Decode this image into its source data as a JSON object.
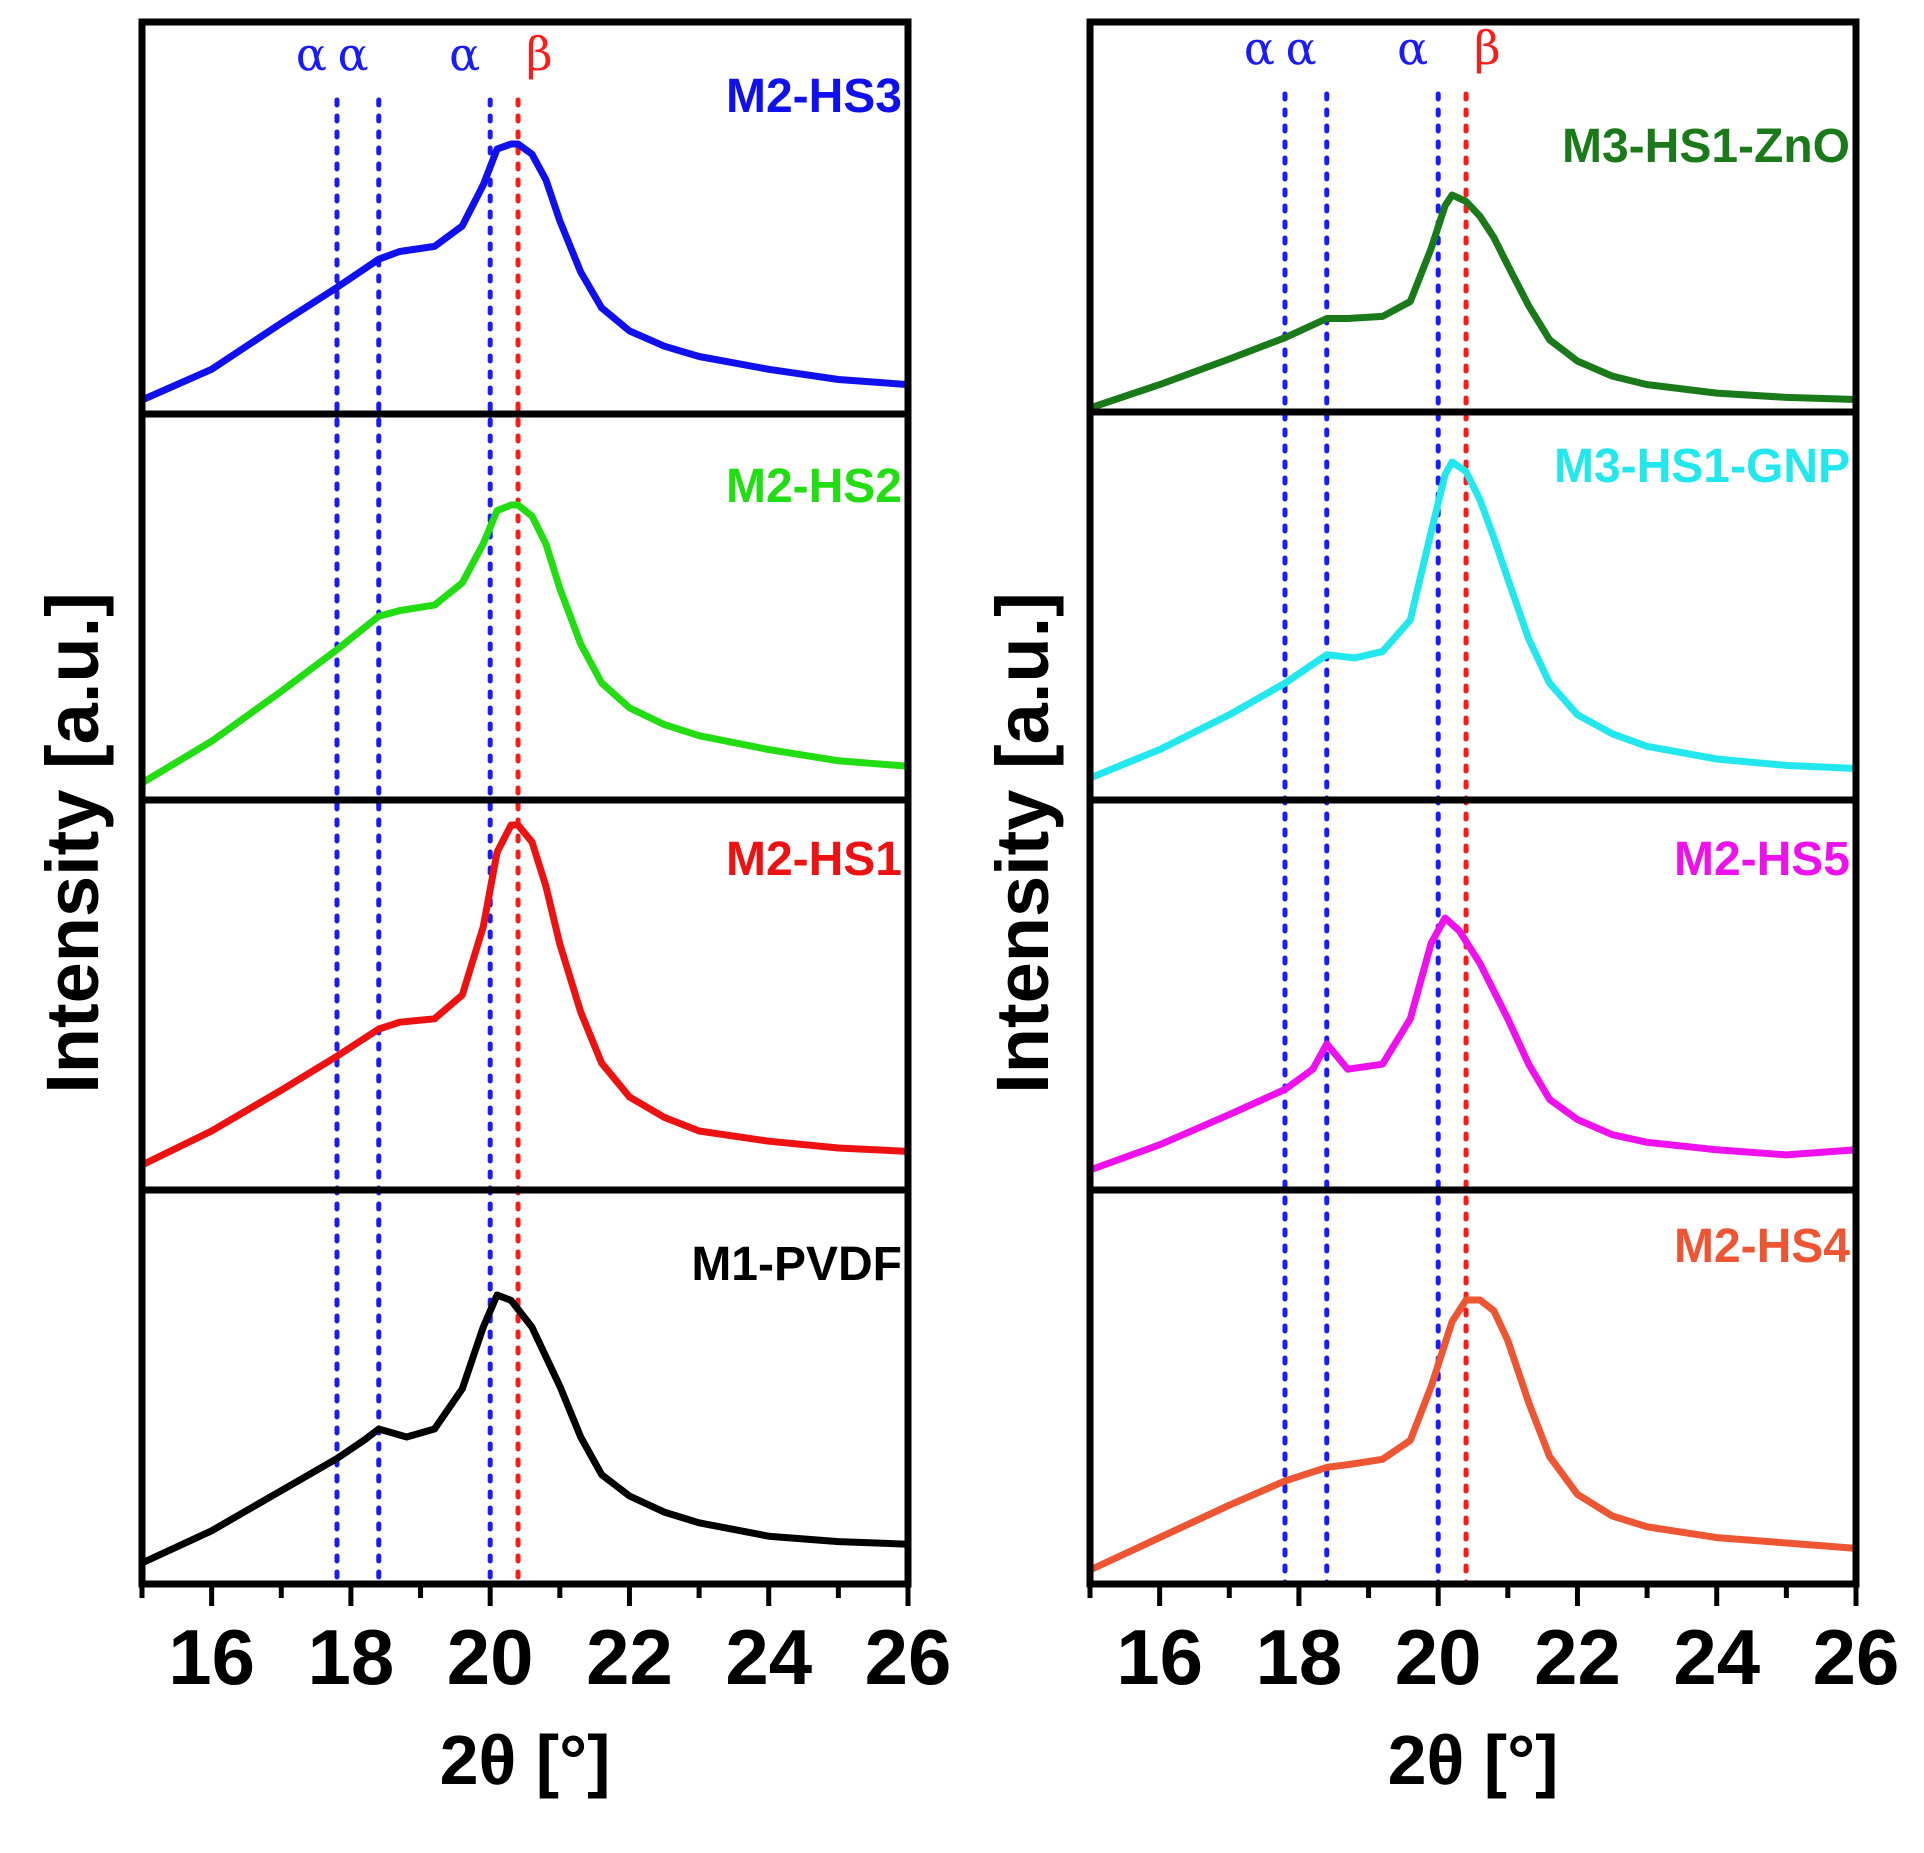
{
  "chart_data": [
    {
      "type": "line",
      "panel": "left",
      "xlabel": "2θ [°]",
      "ylabel": "Intensity [a.u.]",
      "xlim": [
        15,
        26
      ],
      "xticks": [
        "16",
        "18",
        "20",
        "22",
        "24",
        "26"
      ],
      "reference_lines": [
        {
          "label": "α",
          "x": 17.8,
          "color": "#1a1aff"
        },
        {
          "label": "α",
          "x": 18.4,
          "color": "#1a1aff"
        },
        {
          "label": "α",
          "x": 20.0,
          "color": "#1a1aff"
        },
        {
          "label": "β",
          "x": 20.4,
          "color": "#ff1a1a"
        }
      ],
      "series": [
        {
          "name": "M2-HS3",
          "color": "#1010ee",
          "x": [
            15.0,
            16.0,
            17.0,
            17.8,
            18.4,
            18.7,
            19.2,
            19.6,
            19.9,
            20.1,
            20.3,
            20.4,
            20.6,
            20.8,
            21.0,
            21.3,
            21.6,
            22.0,
            22.5,
            23.0,
            24.0,
            25.0,
            26.0
          ],
          "y": [
            0.0,
            0.12,
            0.3,
            0.44,
            0.55,
            0.58,
            0.6,
            0.68,
            0.84,
            0.98,
            1.0,
            1.0,
            0.96,
            0.86,
            0.7,
            0.5,
            0.36,
            0.27,
            0.21,
            0.17,
            0.12,
            0.08,
            0.06
          ]
        },
        {
          "name": "M2-HS2",
          "color": "#22dd11",
          "x": [
            15.0,
            16.0,
            17.0,
            17.8,
            18.4,
            18.7,
            19.2,
            19.6,
            19.9,
            20.1,
            20.3,
            20.4,
            20.6,
            20.8,
            21.0,
            21.3,
            21.6,
            22.0,
            22.5,
            23.0,
            24.0,
            25.0,
            26.0
          ],
          "y": [
            0.0,
            0.15,
            0.33,
            0.48,
            0.6,
            0.62,
            0.64,
            0.72,
            0.86,
            0.98,
            1.0,
            1.0,
            0.96,
            0.86,
            0.7,
            0.5,
            0.36,
            0.27,
            0.21,
            0.17,
            0.12,
            0.08,
            0.06
          ]
        },
        {
          "name": "M2-HS1",
          "color": "#ee1111",
          "x": [
            15.0,
            16.0,
            17.0,
            17.8,
            18.4,
            18.7,
            19.2,
            19.6,
            19.9,
            20.1,
            20.3,
            20.4,
            20.6,
            20.8,
            21.0,
            21.3,
            21.6,
            22.0,
            22.5,
            23.0,
            24.0,
            25.0,
            26.0
          ],
          "y": [
            0.0,
            0.1,
            0.22,
            0.32,
            0.4,
            0.42,
            0.43,
            0.5,
            0.7,
            0.92,
            1.0,
            1.0,
            0.95,
            0.82,
            0.65,
            0.45,
            0.3,
            0.2,
            0.14,
            0.1,
            0.07,
            0.05,
            0.04
          ]
        },
        {
          "name": "M1-PVDF",
          "color": "#000000",
          "x": [
            15.0,
            16.0,
            17.0,
            17.8,
            18.2,
            18.4,
            18.8,
            19.2,
            19.6,
            19.9,
            20.1,
            20.3,
            20.6,
            21.0,
            21.3,
            21.6,
            22.0,
            22.5,
            23.0,
            24.0,
            25.0,
            26.0
          ],
          "y": [
            0.0,
            0.12,
            0.27,
            0.39,
            0.46,
            0.5,
            0.47,
            0.5,
            0.65,
            0.88,
            1.0,
            0.98,
            0.88,
            0.66,
            0.47,
            0.33,
            0.25,
            0.19,
            0.15,
            0.1,
            0.08,
            0.07
          ]
        }
      ],
      "panel_order_top_to_bottom": [
        "M2-HS3",
        "M2-HS2",
        "M2-HS1",
        "M1-PVDF"
      ]
    },
    {
      "type": "line",
      "panel": "right",
      "xlabel": "2θ [°]",
      "ylabel": "Intensity [a.u.]",
      "xlim": [
        15,
        26
      ],
      "xticks": [
        "16",
        "18",
        "20",
        "22",
        "24",
        "26"
      ],
      "reference_lines": [
        {
          "label": "α",
          "x": 17.8,
          "color": "#1a1aff"
        },
        {
          "label": "α",
          "x": 18.4,
          "color": "#1a1aff"
        },
        {
          "label": "α",
          "x": 20.0,
          "color": "#1a1aff"
        },
        {
          "label": "β",
          "x": 20.4,
          "color": "#ff1a1a"
        }
      ],
      "series": [
        {
          "name": "M3-HS1-ZnO",
          "color": "#1a7a1a",
          "x": [
            15.0,
            16.0,
            17.0,
            17.8,
            18.4,
            18.7,
            19.2,
            19.6,
            19.9,
            20.1,
            20.2,
            20.4,
            20.6,
            20.8,
            21.0,
            21.3,
            21.6,
            22.0,
            22.5,
            23.0,
            24.0,
            25.0,
            26.0
          ],
          "y": [
            0.0,
            0.11,
            0.23,
            0.33,
            0.42,
            0.42,
            0.43,
            0.5,
            0.75,
            0.95,
            1.0,
            0.97,
            0.9,
            0.8,
            0.67,
            0.48,
            0.32,
            0.22,
            0.15,
            0.11,
            0.07,
            0.05,
            0.04
          ]
        },
        {
          "name": "M3-HS1-GNP",
          "color": "#22e8ee",
          "x": [
            15.0,
            16.0,
            17.0,
            17.8,
            18.2,
            18.4,
            18.8,
            19.2,
            19.6,
            19.9,
            20.1,
            20.2,
            20.4,
            20.6,
            20.8,
            21.0,
            21.3,
            21.6,
            22.0,
            22.5,
            23.0,
            24.0,
            25.0,
            26.0
          ],
          "y": [
            0.0,
            0.09,
            0.2,
            0.3,
            0.36,
            0.39,
            0.38,
            0.4,
            0.5,
            0.78,
            0.96,
            1.0,
            0.97,
            0.88,
            0.76,
            0.63,
            0.44,
            0.3,
            0.2,
            0.14,
            0.1,
            0.06,
            0.04,
            0.03
          ]
        },
        {
          "name": "M2-HS5",
          "color": "#ee11ee",
          "x": [
            15.0,
            16.0,
            17.0,
            17.8,
            18.2,
            18.4,
            18.7,
            19.2,
            19.6,
            19.9,
            20.1,
            20.3,
            20.6,
            21.0,
            21.3,
            21.6,
            22.0,
            22.5,
            23.0,
            24.0,
            25.0,
            26.0
          ],
          "y": [
            0.0,
            0.1,
            0.22,
            0.32,
            0.4,
            0.5,
            0.4,
            0.42,
            0.6,
            0.9,
            1.0,
            0.95,
            0.82,
            0.6,
            0.42,
            0.28,
            0.2,
            0.14,
            0.11,
            0.08,
            0.06,
            0.08
          ]
        },
        {
          "name": "M2-HS4",
          "color": "#ee5533",
          "x": [
            15.0,
            16.0,
            17.0,
            17.8,
            18.4,
            18.7,
            19.2,
            19.6,
            19.9,
            20.2,
            20.4,
            20.6,
            20.8,
            21.0,
            21.3,
            21.6,
            22.0,
            22.5,
            23.0,
            24.0,
            25.0,
            26.0
          ],
          "y": [
            0.0,
            0.12,
            0.24,
            0.33,
            0.38,
            0.39,
            0.41,
            0.48,
            0.68,
            0.92,
            1.0,
            1.0,
            0.96,
            0.85,
            0.62,
            0.42,
            0.28,
            0.2,
            0.16,
            0.12,
            0.1,
            0.08
          ]
        }
      ],
      "panel_order_top_to_bottom": [
        "M3-HS1-ZnO",
        "M3-HS1-GNP",
        "M2-HS5",
        "M2-HS4"
      ]
    }
  ]
}
